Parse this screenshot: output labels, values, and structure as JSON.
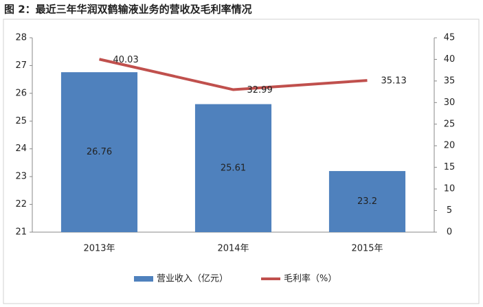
{
  "chart_data": {
    "type": "bar_line",
    "title": "图 2：最近三年华润双鹤输液业务的营收及毛利率情况",
    "categories": [
      "2013年",
      "2014年",
      "2015年"
    ],
    "series": [
      {
        "name": "营业收入（亿元）",
        "color": "#4f81bd",
        "values": [
          26.76,
          25.61,
          23.2
        ],
        "axis": "y"
      },
      {
        "name": "毛利率（%）",
        "color": "#c0504d",
        "values": [
          40.03,
          32.99,
          35.13
        ],
        "axis": "y2"
      }
    ],
    "ylim": [
      21,
      28
    ],
    "yticks": [
      21,
      22,
      23,
      24,
      25,
      26,
      27,
      28
    ],
    "y2lim": [
      0,
      45
    ],
    "y2ticks": [
      0,
      5,
      10,
      15,
      20,
      25,
      30,
      35,
      40,
      45
    ],
    "legend": "bottom"
  }
}
